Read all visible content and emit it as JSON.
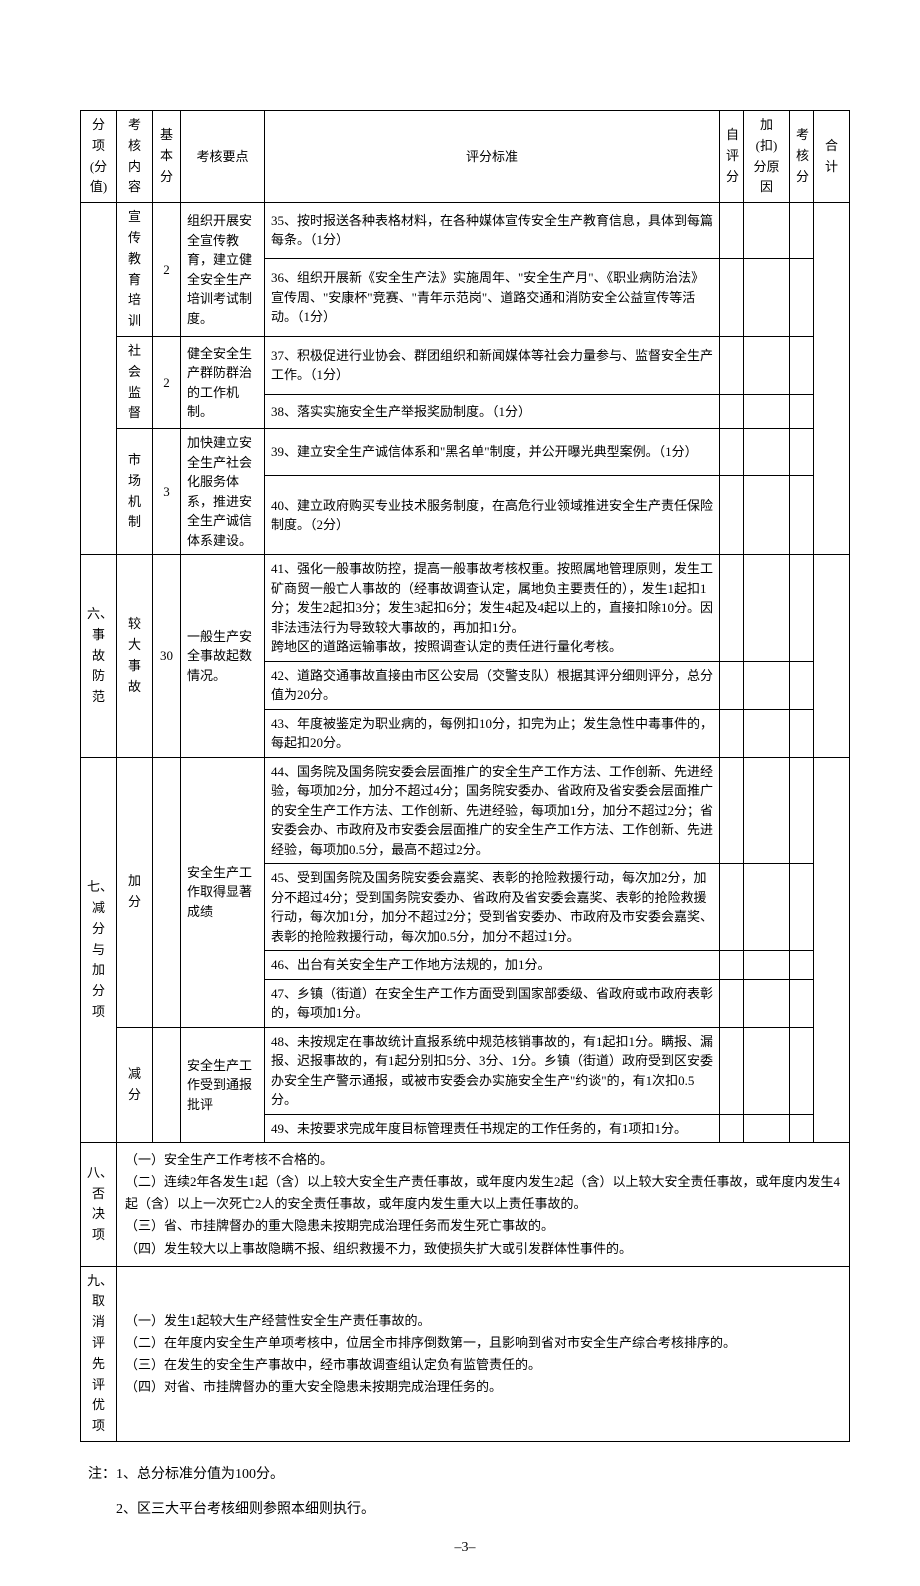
{
  "headers": {
    "section": "分项\n(分\n值)",
    "content": "考核\n内容",
    "basescore": "基\n本\n分",
    "keypoint": "考核要点",
    "criteria": "评分标准",
    "selfscore": "自\n评\n分",
    "reason": "加(扣)\n分原因",
    "checkscore": "考\n核\n分",
    "total": "合计"
  },
  "rows": {
    "r1": {
      "content": "宣传\n教育\n培训",
      "basescore": "2",
      "keypoint": "组织开展安全宣传教育，建立健全安全生产培训考试制度。",
      "c35": "35、按时报送各种表格材料，在各种媒体宣传安全生产教育信息，具体到每篇每条。（1分）",
      "c36": "36、组织开展新《安全生产法》实施周年、\"安全生产月\"、《职业病防治法》宣传周、\"安康杯\"竞赛、\"青年示范岗\"、道路交通和消防安全公益宣传等活动。（1分）"
    },
    "r2": {
      "content": "社会\n监督",
      "basescore": "2",
      "keypoint": "健全安全生产群防群治的工作机制。",
      "c37": "37、积极促进行业协会、群团组织和新闻媒体等社会力量参与、监督安全生产工作。（1分）",
      "c38": "38、落实实施安全生产举报奖励制度。（1分）"
    },
    "r3": {
      "content": "市场\n机制",
      "basescore": "3",
      "keypoint": "加快建立安全生产社会化服务体系，推进安全生产诚信体系建设。",
      "c39": "39、建立安全生产诚信体系和\"黑名单\"制度，并公开曝光典型案例。（1分）",
      "c40": "40、建立政府购买专业技术服务制度，在高危行业领域推进安全生产责任保险制度。（2分）"
    },
    "r4": {
      "section": "六、\n事故\n防范",
      "content": "较大事\n故",
      "basescore": "30",
      "keypoint": "一般生产安全事故起数情况。",
      "c41": "41、强化一般事故防控，提高一般事故考核权重。按照属地管理原则，发生工矿商贸一般亡人事故的（经事故调查认定，属地负主要责任的），发生1起扣1分；发生2起扣3分；发生3起扣6分；发生4起及4起以上的，直接扣除10分。因非法违法行为导致较大事故的，再加扣1分。\n跨地区的道路运输事故，按照调查认定的责任进行量化考核。",
      "c42": "42、道路交通事故直接由市区公安局（交警支队）根据其评分细则评分，总分值为20分。",
      "c43": "43、年度被鉴定为职业病的，每例扣10分，扣完为止；发生急性中毒事件的，每起扣20分。"
    },
    "r5": {
      "section": "七、\n减分\n与加\n分项",
      "content_add": "加分",
      "keypoint_add": "安全生产工作取得显著成绩",
      "c44": "44、国务院及国务院安委会层面推广的安全生产工作方法、工作创新、先进经验，每项加2分，加分不超过4分；国务院安委办、省政府及省安委会层面推广的安全生产工作方法、工作创新、先进经验，每项加1分，加分不超过2分；省安委会办、市政府及市安委会层面推广的安全生产工作方法、工作创新、先进经验，每项加0.5分，最高不超过2分。",
      "c45": "45、受到国务院及国务院安委会嘉奖、表彰的抢险救援行动，每次加2分，加分不超过4分；受到国务院安委办、省政府及省安委会嘉奖、表彰的抢险救援行动，每次加1分，加分不超过2分；受到省安委办、市政府及市安委会嘉奖、表彰的抢险救援行动，每次加0.5分，加分不超过1分。",
      "c46": "46、出台有关安全生产工作地方法规的，加1分。",
      "c47": "47、乡镇（街道）在安全生产工作方面受到国家部委级、省政府或市政府表彰的，每项加1分。",
      "content_sub": "减分",
      "keypoint_sub": "安全生产工作受到通报批评",
      "c48": "48、未按规定在事故统计直报系统中规范核销事故的，有1起扣1分。瞒报、漏报、迟报事故的，有1起分别扣5分、3分、1分。乡镇（街道）政府受到区安委办安全生产警示通报，或被市安委会办实施安全生产\"约谈\"的，有1次扣0.5分。",
      "c49": "49、未按要求完成年度目标管理责任书规定的工作任务的，有1项扣1分。"
    },
    "r6": {
      "section": "八、否\n决项",
      "text": "（一）安全生产工作考核不合格的。\n（二）连续2年各发生1起（含）以上较大安全生产责任事故，或年度内发生2起（含）以上较大安全责任事故，或年度内发生4起（含）以上一次死亡2人的安全责任事故，或年度内发生重大以上责任事故的。\n（三）省、市挂牌督办的重大隐患未按期完成治理任务而发生死亡事故的。\n（四）发生较大以上事故隐瞒不报、组织救援不力，致使损失扩大或引发群体性事件的。"
    },
    "r7": {
      "section": "九、取\n消评\n先评\n优项",
      "text": "（一）发生1起较大生产经营性安全生产责任事故的。\n（二）在年度内安全生产单项考核中，位居全市排序倒数第一，且影响到省对市安全生产综合考核排序的。\n（三）在发生的安全生产事故中，经市事故调查组认定负有监管责任的。\n（四）对省、市挂牌督办的重大安全隐患未按期完成治理任务的。"
    }
  },
  "notes": {
    "n1": "注：1、总分标准分值为100分。",
    "n2": "　　2、区三大平台考核细则参照本细则执行。"
  },
  "pagenum": "–3–"
}
